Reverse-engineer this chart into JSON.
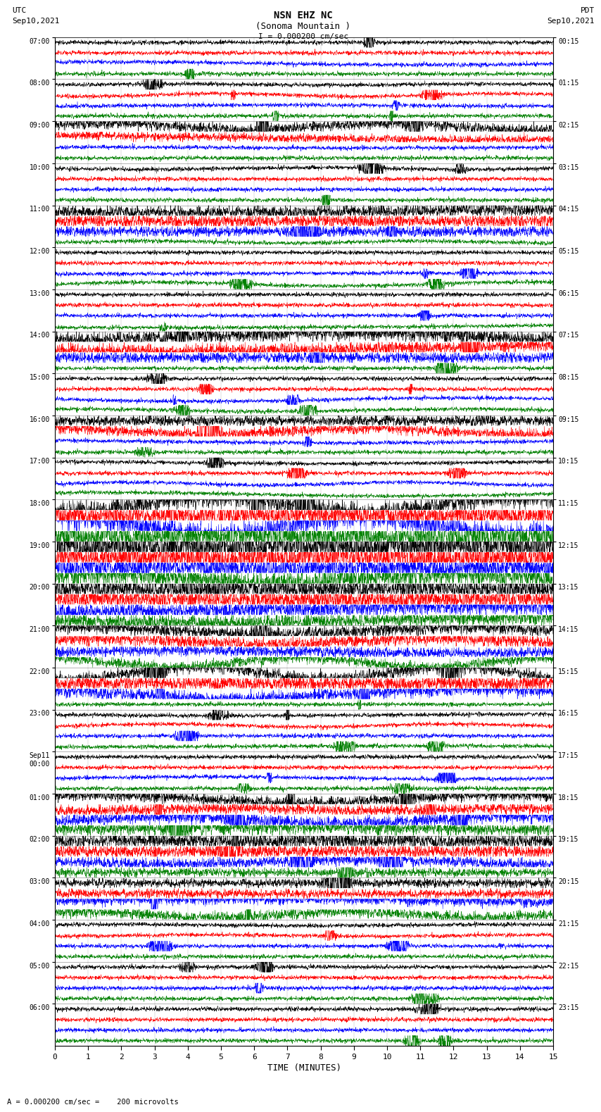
{
  "title_line1": "NSN EHZ NC",
  "title_line2": "(Sonoma Mountain )",
  "scale_label": "I = 0.000200 cm/sec",
  "left_header": "UTC",
  "left_date": "Sep10,2021",
  "right_header": "PDT",
  "right_date": "Sep10,2021",
  "xlabel": "TIME (MINUTES)",
  "bottom_label": "= 0.000200 cm/sec =    200 microvolts",
  "trace_colors": [
    "black",
    "red",
    "blue",
    "green"
  ],
  "bg_color": "white",
  "n_rows": 96,
  "n_points": 2700,
  "x_min": 0,
  "x_max": 15,
  "fig_width": 8.5,
  "fig_height": 16.13,
  "utc_labels": [
    "07:00",
    "08:00",
    "09:00",
    "10:00",
    "11:00",
    "12:00",
    "13:00",
    "14:00",
    "15:00",
    "16:00",
    "17:00",
    "18:00",
    "19:00",
    "20:00",
    "21:00",
    "22:00",
    "23:00",
    "Sep11\n00:00",
    "01:00",
    "02:00",
    "03:00",
    "04:00",
    "05:00",
    "06:00"
  ],
  "pdt_labels": [
    "00:15",
    "01:15",
    "02:15",
    "03:15",
    "04:15",
    "05:15",
    "06:15",
    "07:15",
    "08:15",
    "09:15",
    "10:15",
    "11:15",
    "12:15",
    "13:15",
    "14:15",
    "15:15",
    "16:15",
    "17:15",
    "18:15",
    "19:15",
    "20:15",
    "21:15",
    "22:15",
    "23:15"
  ],
  "special_rows": {
    "44": 5.0,
    "45": 5.0,
    "46": 6.0,
    "47": 7.0,
    "48": 8.0,
    "49": 7.0,
    "50": 6.0,
    "51": 5.5,
    "52": 5.0,
    "53": 4.5,
    "54": 4.0,
    "55": 3.5,
    "56": 3.0,
    "57": 3.0,
    "58": 2.5,
    "59": 2.5,
    "60": 3.0,
    "61": 3.5,
    "62": 3.0,
    "28": 3.5,
    "29": 3.0,
    "30": 2.5,
    "8": 2.5,
    "9": 2.0,
    "16": 3.0,
    "17": 3.0,
    "18": 2.5,
    "36": 2.5,
    "37": 2.5,
    "72": 2.5,
    "73": 2.5,
    "74": 3.0,
    "75": 3.0,
    "76": 3.5,
    "77": 3.0,
    "78": 2.5,
    "79": 2.0,
    "80": 2.0,
    "81": 2.0,
    "82": 2.5,
    "83": 2.5
  }
}
